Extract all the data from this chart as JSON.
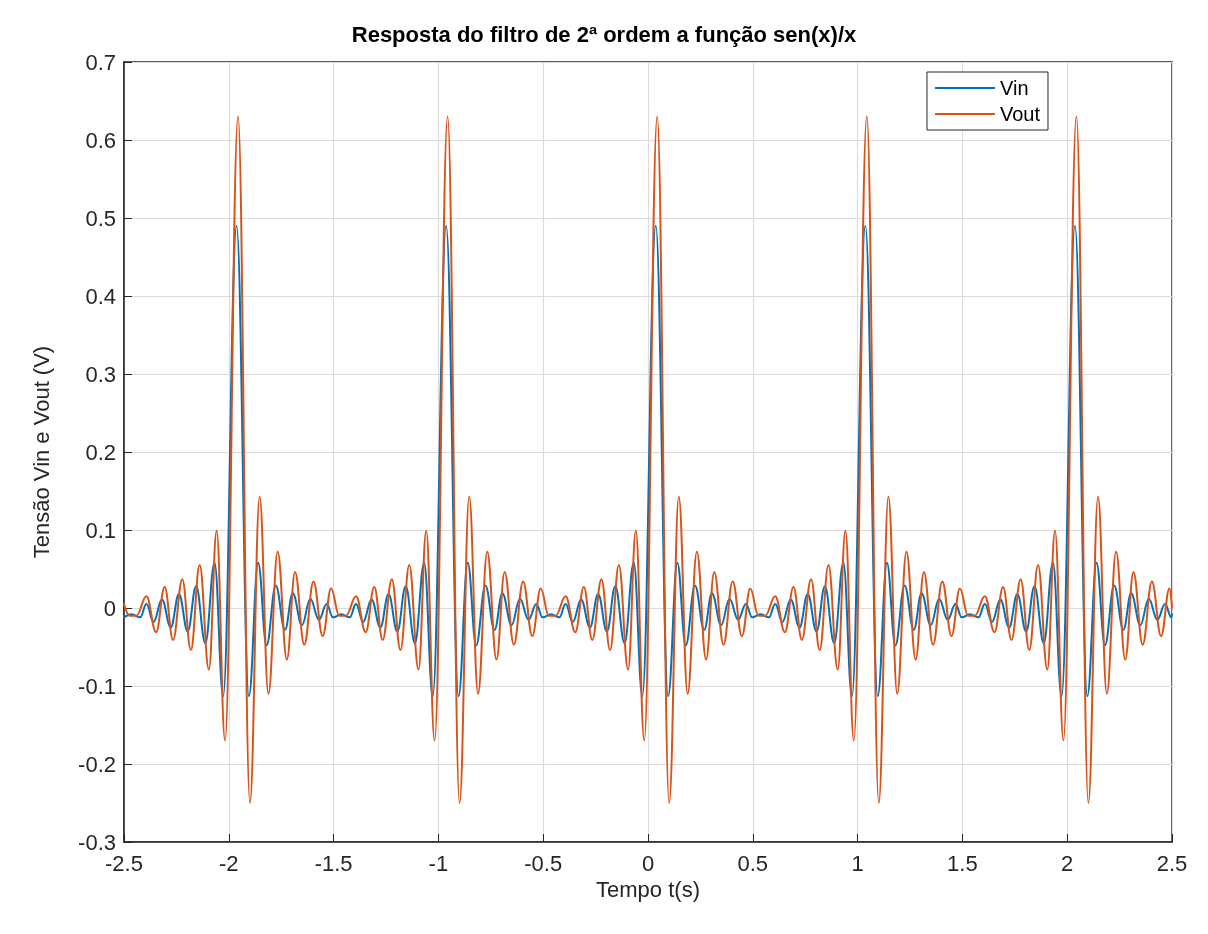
{
  "chart_data": {
    "type": "line",
    "title": "Resposta do filtro de 2ª ordem a função sen(x)/x",
    "xlabel": "Tempo t(s)",
    "ylabel": "Tensão Vin e Vout (V)",
    "xlim": [
      -2.5,
      2.5
    ],
    "ylim": [
      -0.3,
      0.7
    ],
    "xticks": [
      -2.5,
      -2,
      -1.5,
      -1,
      -0.5,
      0,
      0.5,
      1,
      1.5,
      2,
      2.5
    ],
    "yticks": [
      -0.3,
      -0.2,
      -0.1,
      0,
      0.1,
      0.2,
      0.3,
      0.4,
      0.5,
      0.6,
      0.7
    ],
    "grid": true,
    "legend": "top right",
    "series": [
      {
        "name": "Vin",
        "color": "#0072bd",
        "x": [
          -2.5,
          -2.463,
          -2.423,
          -2.393,
          -2.359,
          -2.319,
          -2.277,
          -2.238,
          -2.196,
          -2.156,
          -2.112,
          -2.068,
          -2.027,
          -1.963,
          -1.904,
          -1.86,
          -1.82,
          -1.776,
          -1.732,
          -1.695,
          -1.651,
          -1.611,
          -1.57,
          -1.533,
          -1.503,
          -1.463,
          -1.423,
          -1.393,
          -1.359,
          -1.319,
          -1.277,
          -1.238,
          -1.196,
          -1.156,
          -1.112,
          -1.068,
          -1.027,
          -0.963,
          -0.904,
          -0.86,
          -0.82,
          -0.776,
          -0.732,
          -0.695,
          -0.651,
          -0.611,
          -0.57,
          -0.533,
          -0.503,
          -0.463,
          -0.423,
          -0.393,
          -0.359,
          -0.319,
          -0.277,
          -0.238,
          -0.196,
          -0.156,
          -0.112,
          -0.068,
          -0.027,
          0.037,
          0.096,
          0.14,
          0.18,
          0.224,
          0.268,
          0.305,
          0.349,
          0.389,
          0.43,
          0.467,
          0.497,
          0.537,
          0.577,
          0.607,
          0.641,
          0.681,
          0.723,
          0.762,
          0.804,
          0.844,
          0.888,
          0.932,
          0.973,
          1.037,
          1.096,
          1.14,
          1.18,
          1.224,
          1.268,
          1.305,
          1.349,
          1.389,
          1.43,
          1.467,
          1.497,
          1.537,
          1.577,
          1.607,
          1.641,
          1.681,
          1.723,
          1.762,
          1.804,
          1.844,
          1.888,
          1.932,
          1.973,
          2.037,
          2.096,
          2.14,
          2.18,
          2.224,
          2.268,
          2.305,
          2.349,
          2.389,
          2.43,
          2.467,
          2.497,
          2.5
        ],
        "values": [
          -0.012,
          -0.008,
          -0.012,
          0.005,
          -0.018,
          0.011,
          -0.025,
          0.018,
          -0.03,
          0.028,
          -0.045,
          0.058,
          -0.113,
          0.49,
          -0.113,
          0.058,
          -0.048,
          0.029,
          -0.028,
          0.019,
          -0.022,
          0.012,
          -0.015,
          0.005,
          -0.012,
          -0.008,
          -0.012,
          0.005,
          -0.018,
          0.011,
          -0.025,
          0.018,
          -0.03,
          0.028,
          -0.045,
          0.058,
          -0.113,
          0.49,
          -0.113,
          0.058,
          -0.048,
          0.029,
          -0.028,
          0.019,
          -0.022,
          0.012,
          -0.015,
          0.005,
          -0.012,
          -0.008,
          -0.012,
          0.005,
          -0.018,
          0.011,
          -0.025,
          0.018,
          -0.03,
          0.028,
          -0.045,
          0.058,
          -0.113,
          0.49,
          -0.113,
          0.058,
          -0.048,
          0.029,
          -0.028,
          0.019,
          -0.022,
          0.012,
          -0.015,
          0.005,
          -0.012,
          -0.008,
          -0.012,
          0.005,
          -0.018,
          0.011,
          -0.025,
          0.018,
          -0.03,
          0.028,
          -0.045,
          0.058,
          -0.113,
          0.49,
          -0.113,
          0.058,
          -0.048,
          0.029,
          -0.028,
          0.019,
          -0.022,
          0.012,
          -0.015,
          0.005,
          -0.012,
          -0.008,
          -0.012,
          0.005,
          -0.018,
          0.011,
          -0.025,
          0.018,
          -0.03,
          0.028,
          -0.045,
          0.058,
          -0.113,
          0.49,
          -0.113,
          0.058,
          -0.048,
          0.029,
          -0.028,
          0.019,
          -0.022,
          0.012,
          -0.015,
          0.005,
          -0.012,
          -0.008
        ]
      },
      {
        "name": "Vout",
        "color": "#d95319",
        "x": [
          -2.5,
          -2.473,
          -2.441,
          -2.393,
          -2.347,
          -2.306,
          -2.266,
          -2.222,
          -2.181,
          -2.139,
          -2.095,
          -2.058,
          -2.018,
          -1.956,
          -1.899,
          -1.853,
          -1.811,
          -1.767,
          -1.723,
          -1.684,
          -1.64,
          -1.596,
          -1.552,
          -1.512,
          -1.473,
          -1.441,
          -1.393,
          -1.347,
          -1.306,
          -1.266,
          -1.222,
          -1.181,
          -1.139,
          -1.095,
          -1.058,
          -1.018,
          -0.956,
          -0.899,
          -0.853,
          -0.811,
          -0.767,
          -0.723,
          -0.684,
          -0.64,
          -0.596,
          -0.552,
          -0.512,
          -0.473,
          -0.441,
          -0.393,
          -0.347,
          -0.306,
          -0.266,
          -0.222,
          -0.181,
          -0.139,
          -0.095,
          -0.058,
          -0.018,
          0.044,
          0.101,
          0.147,
          0.189,
          0.233,
          0.277,
          0.316,
          0.36,
          0.404,
          0.448,
          0.488,
          0.527,
          0.559,
          0.607,
          0.653,
          0.694,
          0.734,
          0.778,
          0.819,
          0.861,
          0.905,
          0.942,
          0.982,
          1.044,
          1.101,
          1.147,
          1.189,
          1.233,
          1.277,
          1.316,
          1.36,
          1.404,
          1.448,
          1.488,
          1.527,
          1.559,
          1.607,
          1.653,
          1.694,
          1.734,
          1.778,
          1.819,
          1.861,
          1.905,
          1.942,
          1.982,
          2.044,
          2.101,
          2.147,
          2.189,
          2.233,
          2.277,
          2.316,
          2.36,
          2.404,
          2.448,
          2.488,
          2.5
        ],
        "values": [
          0.005,
          -0.01,
          -0.01,
          0.015,
          -0.031,
          0.027,
          -0.041,
          0.037,
          -0.054,
          0.055,
          -0.079,
          0.099,
          -0.17,
          0.63,
          -0.25,
          0.143,
          -0.11,
          0.072,
          -0.066,
          0.046,
          -0.047,
          0.034,
          -0.036,
          0.025,
          -0.01,
          -0.01,
          0.015,
          -0.031,
          0.027,
          -0.041,
          0.037,
          -0.054,
          0.055,
          -0.079,
          0.099,
          -0.17,
          0.63,
          -0.25,
          0.143,
          -0.11,
          0.072,
          -0.066,
          0.046,
          -0.047,
          0.034,
          -0.036,
          0.025,
          -0.01,
          -0.01,
          0.015,
          -0.031,
          0.027,
          -0.041,
          0.037,
          -0.054,
          0.055,
          -0.079,
          0.099,
          -0.17,
          0.63,
          -0.25,
          0.143,
          -0.11,
          0.072,
          -0.066,
          0.046,
          -0.047,
          0.034,
          -0.036,
          0.025,
          -0.01,
          -0.01,
          0.015,
          -0.031,
          0.027,
          -0.041,
          0.037,
          -0.054,
          0.055,
          -0.079,
          0.099,
          -0.17,
          0.63,
          -0.25,
          0.143,
          -0.11,
          0.072,
          -0.066,
          0.046,
          -0.047,
          0.034,
          -0.036,
          0.025,
          -0.01,
          -0.01,
          0.015,
          -0.031,
          0.027,
          -0.041,
          0.037,
          -0.054,
          0.055,
          -0.079,
          0.099,
          -0.17,
          0.63,
          -0.25,
          0.143,
          -0.11,
          0.072,
          -0.066,
          0.046,
          -0.047,
          0.034,
          -0.036,
          0.025,
          0
        ]
      }
    ]
  }
}
